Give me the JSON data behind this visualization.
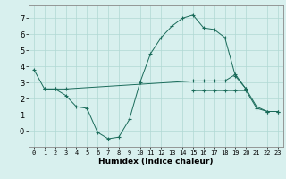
{
  "xlabel": "Humidex (Indice chaleur)",
  "x_values": [
    0,
    1,
    2,
    3,
    4,
    5,
    6,
    7,
    8,
    9,
    10,
    11,
    12,
    13,
    14,
    15,
    16,
    17,
    18,
    19,
    20,
    21,
    22,
    23
  ],
  "line1": [
    3.8,
    2.6,
    2.6,
    2.2,
    1.5,
    1.4,
    -0.1,
    -0.5,
    -0.4,
    0.7,
    3.0,
    4.8,
    5.8,
    6.5,
    7.0,
    7.2,
    6.4,
    6.3,
    5.8,
    3.4,
    2.6,
    1.5,
    1.2,
    1.2
  ],
  "line2_x": [
    1,
    2,
    3,
    15,
    16,
    17,
    18,
    19,
    20
  ],
  "line2_y": [
    2.6,
    2.6,
    2.6,
    3.1,
    3.1,
    3.1,
    3.1,
    3.5,
    2.6
  ],
  "line3_x": [
    15,
    16,
    17,
    18,
    19,
    20,
    21,
    22,
    23
  ],
  "line3_y": [
    2.5,
    2.5,
    2.5,
    2.5,
    2.5,
    2.5,
    1.4,
    1.2,
    1.2
  ],
  "line_color": "#1a6b5a",
  "bg_color": "#d8f0ee",
  "grid_color": "#b0d8d4",
  "ylim": [
    -1.0,
    7.8
  ],
  "yticks": [
    0,
    1,
    2,
    3,
    4,
    5,
    6,
    7
  ],
  "ytick_labels": [
    "-0",
    "1",
    "2",
    "3",
    "4",
    "5",
    "6",
    "7"
  ]
}
